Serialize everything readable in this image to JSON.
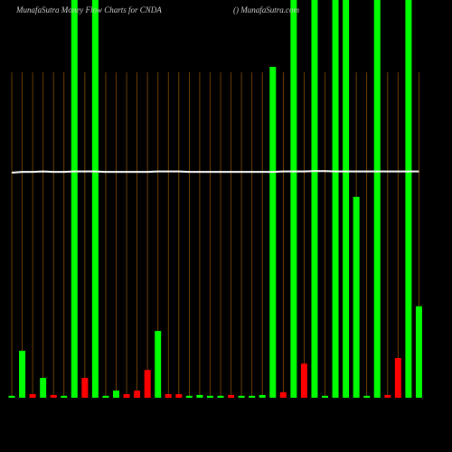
{
  "chart_data": {
    "type": "bar",
    "title": "MunafaSutra  Money Flow  Charts for CNDA",
    "subtitle": "() MunafaSutra.com",
    "categories": [
      null,
      null,
      null,
      null,
      null,
      null,
      null,
      null,
      null,
      null,
      null,
      null,
      null,
      null,
      null,
      null,
      null,
      null,
      null,
      null,
      null,
      null,
      null,
      null,
      null,
      null,
      null,
      null,
      null,
      null,
      null,
      null,
      null,
      null,
      null,
      null,
      null,
      null,
      null,
      null
    ],
    "values": [
      0.5,
      11.8,
      0.9,
      5,
      0.7,
      0.5,
      100,
      5,
      100,
      0.5,
      1.8,
      0.9,
      1.8,
      7,
      16.8,
      0.9,
      0.9,
      0.5,
      0.7,
      0.5,
      0.5,
      0.7,
      0.5,
      0.5,
      0.7,
      83.2,
      1.4,
      100,
      8.6,
      100,
      0.5,
      100,
      100,
      50.5,
      0.5,
      100,
      0.7,
      10,
      100,
      23
    ],
    "colors": [
      "#00ff00",
      "#00ff00",
      "#ff0000",
      "#00ff00",
      "#ff0000",
      "#00ff00",
      "#00ff00",
      "#ff0000",
      "#00ff00",
      "#00ff00",
      "#00ff00",
      "#ff0000",
      "#ff0000",
      "#ff0000",
      "#00ff00",
      "#ff0000",
      "#ff0000",
      "#00ff00",
      "#00ff00",
      "#00ff00",
      "#00ff00",
      "#ff0000",
      "#00ff00",
      "#00ff00",
      "#00ff00",
      "#00ff00",
      "#ff0000",
      "#00ff00",
      "#ff0000",
      "#00ff00",
      "#00ff00",
      "#00ff00",
      "#00ff00",
      "#00ff00",
      "#00ff00",
      "#00ff00",
      "#ff0000",
      "#ff0000",
      "#00ff00",
      "#00ff00"
    ],
    "line": {
      "color": "#ffffff",
      "values": [
        56.6,
        56.8,
        56.8,
        56.9,
        56.8,
        56.8,
        56.9,
        56.9,
        56.9,
        56.8,
        56.8,
        56.8,
        56.8,
        56.8,
        56.9,
        56.9,
        56.9,
        56.8,
        56.8,
        56.8,
        56.8,
        56.8,
        56.8,
        56.8,
        56.8,
        56.8,
        56.9,
        56.9,
        56.9,
        57,
        57,
        56.9,
        56.9,
        56.9,
        56.9,
        56.9,
        56.9,
        56.9,
        56.9,
        56.9
      ]
    },
    "ylim": [
      0,
      100
    ]
  }
}
